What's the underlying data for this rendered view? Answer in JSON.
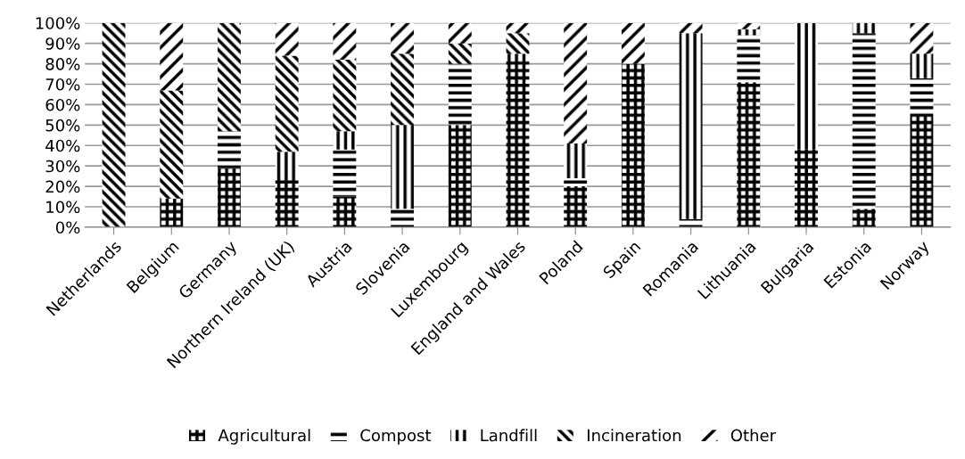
{
  "chart_data": {
    "type": "bar",
    "stacked": true,
    "categories": [
      "Netherlands",
      "Belgium",
      "Germany",
      "Northern Ireland (UK)",
      "Austria",
      "Slovenia",
      "Luxembourg",
      "England and Wales",
      "Poland",
      "Spain",
      "Romania",
      "Lithuania",
      "Bulgaria",
      "Estonia",
      "Norway"
    ],
    "series": [
      {
        "name": "Agricultural",
        "color": "#000000",
        "values": [
          0,
          14,
          29,
          24,
          15,
          0,
          50,
          82,
          20,
          80,
          0,
          71,
          38,
          9,
          55
        ]
      },
      {
        "name": "Compost",
        "color": "#000000",
        "values": [
          0,
          0,
          18,
          0,
          23,
          9,
          30,
          0,
          4,
          0,
          4,
          23,
          0,
          86,
          18
        ]
      },
      {
        "name": "Landfill",
        "color": "#000000",
        "values": [
          0,
          0,
          0,
          13,
          9,
          41,
          0,
          3,
          17,
          0,
          91,
          3,
          62,
          5,
          12
        ]
      },
      {
        "name": "Incineration",
        "color": "#000000",
        "values": [
          100,
          53,
          53,
          47,
          35,
          35,
          10,
          10,
          0,
          0,
          0,
          0,
          0,
          0,
          0
        ]
      },
      {
        "name": "Other",
        "color": "#000000",
        "values": [
          0,
          33,
          0,
          16,
          18,
          15,
          10,
          5,
          59,
          20,
          5,
          3,
          0,
          0,
          15
        ]
      }
    ],
    "ylim": [
      0,
      100
    ],
    "yticks": [
      {
        "value": 0,
        "label": "0%"
      },
      {
        "value": 10,
        "label": "10%"
      },
      {
        "value": 20,
        "label": "20%"
      },
      {
        "value": 30,
        "label": "30%"
      },
      {
        "value": 40,
        "label": "40%"
      },
      {
        "value": 50,
        "label": "50%"
      },
      {
        "value": 60,
        "label": "60%"
      },
      {
        "value": 70,
        "label": "70%"
      },
      {
        "value": 80,
        "label": "80%"
      },
      {
        "value": 90,
        "label": "90%"
      },
      {
        "value": 100,
        "label": "100%"
      }
    ],
    "grid": "y",
    "legend": "bottom"
  }
}
